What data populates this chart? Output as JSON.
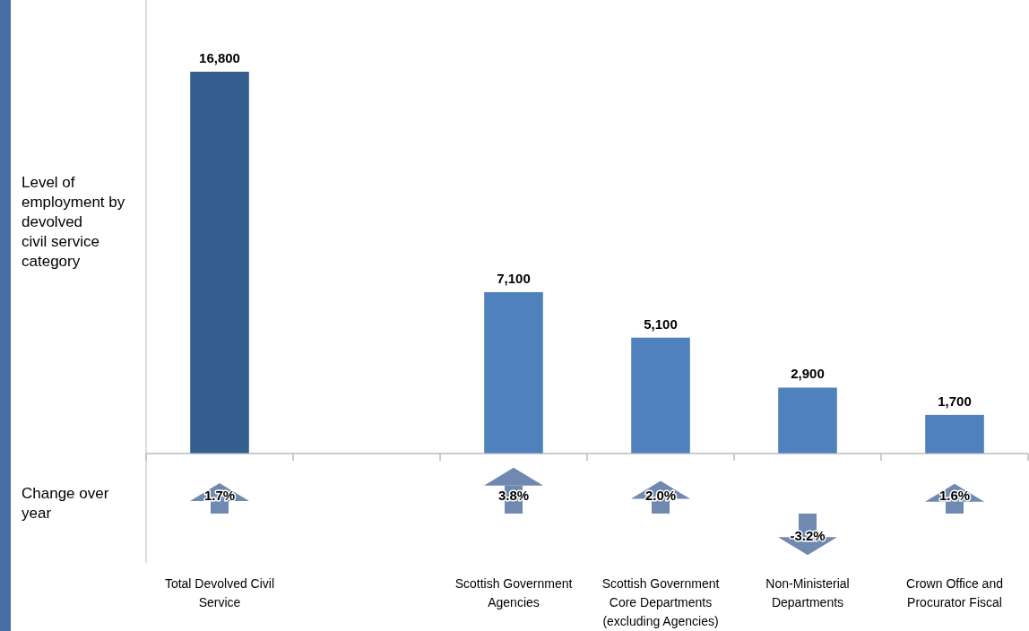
{
  "chart_data": [
    {
      "type": "bar",
      "ylabel": "Level of employment by devolved civil service category",
      "categories": [
        "Total Devolved Civil Service",
        null,
        "Scottish Government Agencies",
        "Scottish Government Core Departments (excluding Agencies)",
        "Non-Ministerial Departments",
        "Crown Office and Procurator Fiscal"
      ],
      "values": [
        16800,
        null,
        7100,
        5100,
        2900,
        1700
      ],
      "value_labels": [
        "16,800",
        null,
        "7,100",
        "5,100",
        "2,900",
        "1,700"
      ],
      "colors": [
        "#355f91",
        null,
        "#4f81bd",
        "#4f81bd",
        "#4f81bd",
        "#4f81bd"
      ]
    },
    {
      "type": "bar",
      "ylabel": "Change over year",
      "values": [
        1.7,
        null,
        3.8,
        2.0,
        -3.2,
        1.6
      ],
      "value_labels": [
        "1.7%",
        null,
        "3.8%",
        "2.0%",
        "-3.2%",
        "1.6%"
      ],
      "color": "#7089b1"
    }
  ]
}
